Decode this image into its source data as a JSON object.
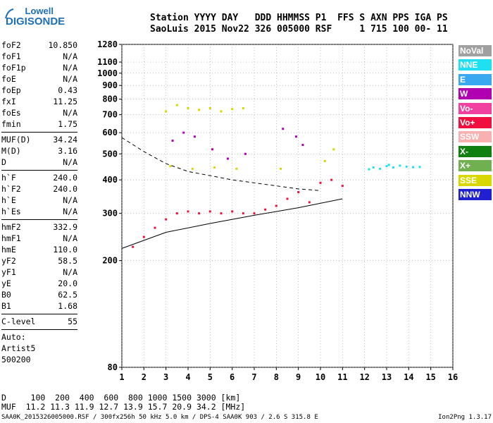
{
  "logo": {
    "line1": "Lowell",
    "line2": "DIGISONDE"
  },
  "header": {
    "columns": "Station YYYY DAY   DDD HHMMSS P1  FFS S AXN PPS IGA PS",
    "values": "SaoLuis 2015 Nov22 326 005000 RSF     1 715 100 00- 11"
  },
  "params": [
    {
      "name": "foF2",
      "value": "10.850"
    },
    {
      "name": "foF1",
      "value": "N/A"
    },
    {
      "name": "foF1p",
      "value": "N/A"
    },
    {
      "name": "foE",
      "value": "N/A"
    },
    {
      "name": "foEp",
      "value": "0.43"
    },
    {
      "name": "fxI",
      "value": "11.25"
    },
    {
      "name": "foEs",
      "value": "N/A"
    },
    {
      "name": "fmin",
      "value": "1.75"
    },
    {
      "sep": true
    },
    {
      "name": "MUF(D)",
      "value": "34.24"
    },
    {
      "name": "M(D)",
      "value": "3.16"
    },
    {
      "name": "D",
      "value": "N/A"
    },
    {
      "sep": true
    },
    {
      "name": "h`F",
      "value": "240.0"
    },
    {
      "name": "h`F2",
      "value": "240.0"
    },
    {
      "name": "h`E",
      "value": "N/A"
    },
    {
      "name": "h`Es",
      "value": "N/A"
    },
    {
      "sep": true
    },
    {
      "name": "hmF2",
      "value": "332.9"
    },
    {
      "name": "hmF1",
      "value": "N/A"
    },
    {
      "name": "hmE",
      "value": "110.0"
    },
    {
      "name": "yF2",
      "value": "58.5"
    },
    {
      "name": "yF1",
      "value": "N/A"
    },
    {
      "name": "yE",
      "value": "20.0"
    },
    {
      "name": "B0",
      "value": "62.5"
    },
    {
      "name": "B1",
      "value": "1.68"
    },
    {
      "sep": true
    },
    {
      "name": "C-level",
      "value": "55"
    },
    {
      "sep": true
    },
    {
      "text": "Auto:"
    },
    {
      "text": "Artist5"
    },
    {
      "text": "500200"
    }
  ],
  "legend": [
    {
      "label": "NoVal",
      "color": "#a0a0a0"
    },
    {
      "label": "NNE",
      "color": "#1ee0f0"
    },
    {
      "label": "E",
      "color": "#38a8f0"
    },
    {
      "label": "W",
      "color": "#b000b0"
    },
    {
      "label": "Vo-",
      "color": "#f040a0"
    },
    {
      "label": "Vo+",
      "color": "#f01040"
    },
    {
      "label": "SSW",
      "color": "#f8b0b0"
    },
    {
      "label": "X-",
      "color": "#108010"
    },
    {
      "label": "X+",
      "color": "#70b050"
    },
    {
      "label": "SSE",
      "color": "#d8d800"
    },
    {
      "label": "NNW",
      "color": "#2020d0"
    }
  ],
  "footer": {
    "d_row": "D     100  200  400  600  800 1000 1500 3000 [km]",
    "muf_row": "MUF  11.2 11.3 11.9 12.7 13.9 15.7 20.9 34.2 [MHz]",
    "bottom_left": "SAA0K_2015326005000.RSF / 300fx256h 50 kHz 5.0 km / DPS-4 SAA0K 903 / 2.6 S 315.8 E",
    "bottom_right": "Ion2Png 1.3.17"
  },
  "chart_data": {
    "type": "scatter",
    "title": "",
    "xlabel": "",
    "ylabel": "",
    "xlim": [
      1,
      16
    ],
    "ylim": [
      80,
      1280
    ],
    "y_scale": "log",
    "x_ticks": [
      1,
      2,
      3,
      4,
      5,
      6,
      7,
      8,
      9,
      10,
      11,
      12,
      13,
      14,
      15,
      16
    ],
    "y_ticks": [
      80,
      200,
      300,
      400,
      500,
      600,
      700,
      800,
      900,
      1000,
      1100,
      1280
    ],
    "grid": true,
    "legend_position": "right",
    "series": [
      {
        "name": "NNE",
        "color": "#1ee0f0",
        "points": [
          [
            12.4,
            445
          ],
          [
            12.7,
            440
          ],
          [
            13.0,
            450
          ],
          [
            13.3,
            445
          ],
          [
            13.6,
            452
          ],
          [
            13.9,
            448
          ],
          [
            14.2,
            446
          ],
          [
            14.5,
            447
          ],
          [
            12.2,
            438
          ],
          [
            13.1,
            455
          ]
        ]
      },
      {
        "name": "Vo+",
        "color": "#f01040",
        "points": [
          [
            1.5,
            225
          ],
          [
            2.0,
            245
          ],
          [
            2.5,
            265
          ],
          [
            3.0,
            285
          ],
          [
            3.5,
            300
          ],
          [
            4.0,
            305
          ],
          [
            4.5,
            300
          ],
          [
            5.0,
            305
          ],
          [
            5.5,
            300
          ],
          [
            6.0,
            305
          ],
          [
            6.5,
            300
          ],
          [
            7.0,
            300
          ],
          [
            7.5,
            310
          ],
          [
            8.0,
            320
          ],
          [
            8.5,
            340
          ],
          [
            9.0,
            360
          ],
          [
            9.5,
            330
          ],
          [
            10.0,
            390
          ],
          [
            10.5,
            400
          ],
          [
            11.0,
            380
          ]
        ]
      },
      {
        "name": "SSE",
        "color": "#d8d800",
        "points": [
          [
            3.0,
            720
          ],
          [
            3.5,
            760
          ],
          [
            4.0,
            740
          ],
          [
            4.5,
            730
          ],
          [
            5.0,
            740
          ],
          [
            5.5,
            720
          ],
          [
            6.0,
            735
          ],
          [
            6.5,
            740
          ],
          [
            3.2,
            450
          ],
          [
            4.2,
            440
          ],
          [
            5.2,
            445
          ],
          [
            6.2,
            440
          ],
          [
            8.2,
            440
          ],
          [
            10.2,
            470
          ],
          [
            10.6,
            520
          ]
        ]
      },
      {
        "name": "W",
        "color": "#b000b0",
        "points": [
          [
            3.3,
            560
          ],
          [
            3.8,
            600
          ],
          [
            4.3,
            580
          ],
          [
            5.1,
            520
          ],
          [
            5.8,
            480
          ],
          [
            6.6,
            500
          ],
          [
            8.3,
            620
          ],
          [
            8.9,
            580
          ],
          [
            9.2,
            540
          ]
        ]
      }
    ],
    "curves": [
      {
        "name": "",
        "style": "solid",
        "points": [
          [
            1.0,
            222
          ],
          [
            3.0,
            255
          ],
          [
            5.0,
            275
          ],
          [
            7.0,
            295
          ],
          [
            9.0,
            315
          ],
          [
            11.0,
            340
          ]
        ]
      },
      {
        "name": "",
        "style": "dashed",
        "points": [
          [
            1.0,
            575
          ],
          [
            2.0,
            510
          ],
          [
            3.0,
            460
          ],
          [
            4.0,
            430
          ],
          [
            6.0,
            400
          ],
          [
            8.0,
            380
          ],
          [
            9.0,
            370
          ],
          [
            10.0,
            365
          ]
        ]
      }
    ]
  }
}
